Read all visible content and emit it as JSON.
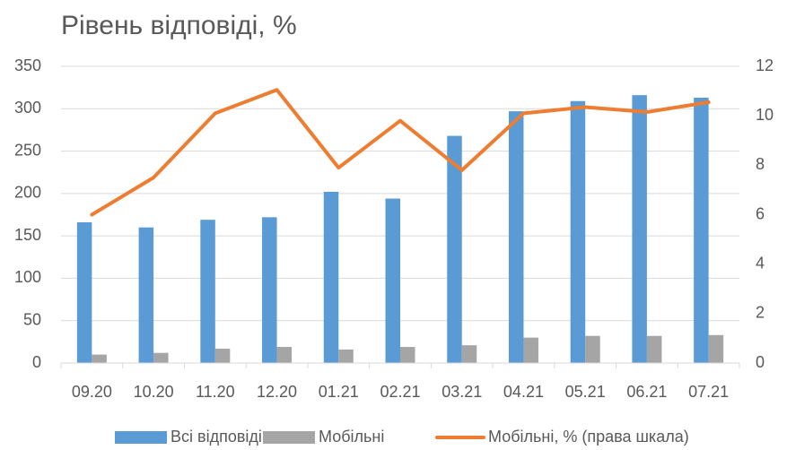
{
  "chart_data": {
    "type": "bar",
    "title": "Рівень відповіді, %",
    "categories": [
      "09.20",
      "10.20",
      "11.20",
      "12.20",
      "01.21",
      "02.21",
      "03.21",
      "04.21",
      "05.21",
      "06.21",
      "07.21"
    ],
    "series": [
      {
        "name": "Всі відповіді",
        "color": "#5b9bd5",
        "values": [
          166,
          160,
          169,
          172,
          202,
          194,
          268,
          297,
          309,
          316,
          313
        ]
      },
      {
        "name": "Мобільні",
        "color": "#a5a5a5",
        "values": [
          10,
          12,
          17,
          19,
          16,
          19,
          21,
          30,
          32,
          32,
          33
        ]
      },
      {
        "name": "Мобільні, % (права шкала)",
        "color": "#ed7d31",
        "type": "line",
        "axis": "y2",
        "values": [
          6.0,
          7.5,
          10.1,
          11.05,
          7.9,
          9.8,
          7.8,
          10.1,
          10.35,
          10.15,
          10.55
        ]
      }
    ],
    "ylim": [
      0,
      350
    ],
    "yticks": [
      0,
      50,
      100,
      150,
      200,
      250,
      300,
      350
    ],
    "y2lim": [
      0,
      12
    ],
    "y2ticks": [
      0,
      2,
      4,
      6,
      8,
      10,
      12
    ],
    "grid": true,
    "legend": "bottom"
  }
}
